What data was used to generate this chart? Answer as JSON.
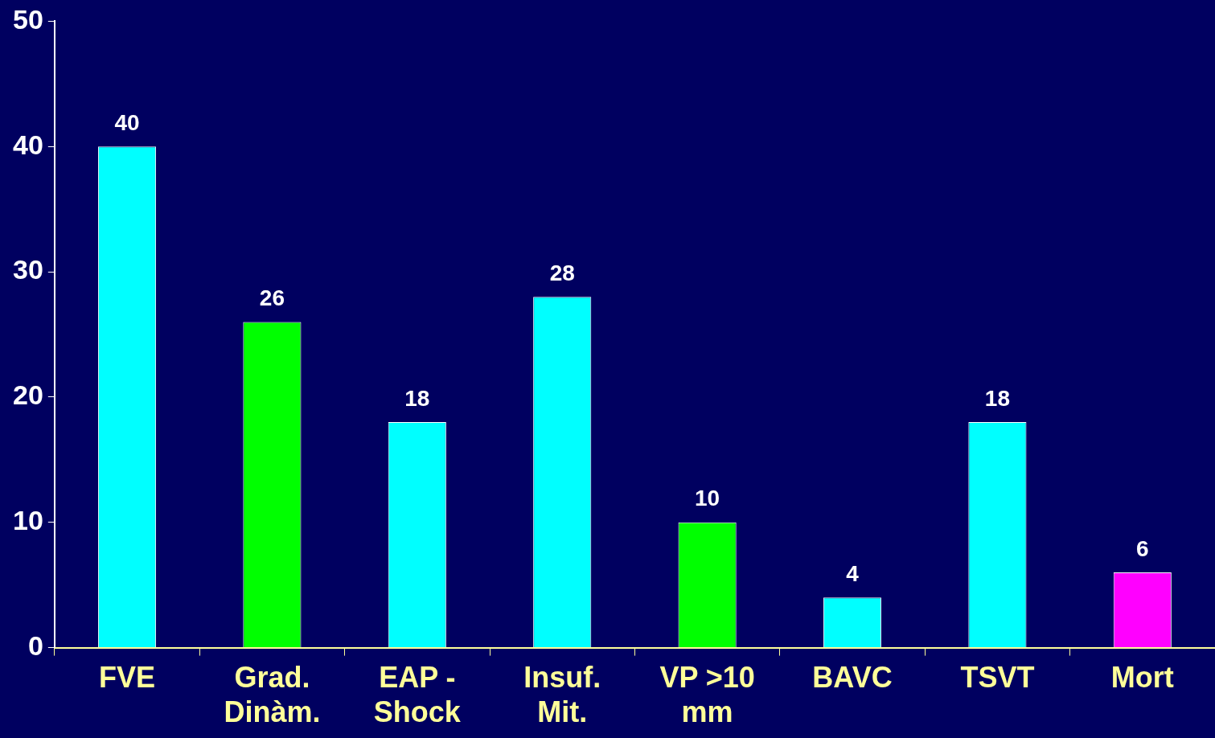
{
  "chart_data": {
    "type": "bar",
    "categories": [
      "FVE",
      "Grad. Dinàm.",
      "EAP - Shock",
      "Insuf. Mit.",
      "VP >10 mm",
      "BAVC",
      "TSVT",
      "Mort"
    ],
    "values": [
      40,
      26,
      18,
      28,
      10,
      4,
      18,
      6
    ],
    "colors": [
      "#00ffff",
      "#00ff00",
      "#00ffff",
      "#00ffff",
      "#00ff00",
      "#00ffff",
      "#00ffff",
      "#ff00ff"
    ],
    "ylim": [
      0,
      50
    ],
    "yticks": [
      0,
      10,
      20,
      30,
      40,
      50
    ],
    "grid": false,
    "legend": false,
    "data_labels": true
  }
}
